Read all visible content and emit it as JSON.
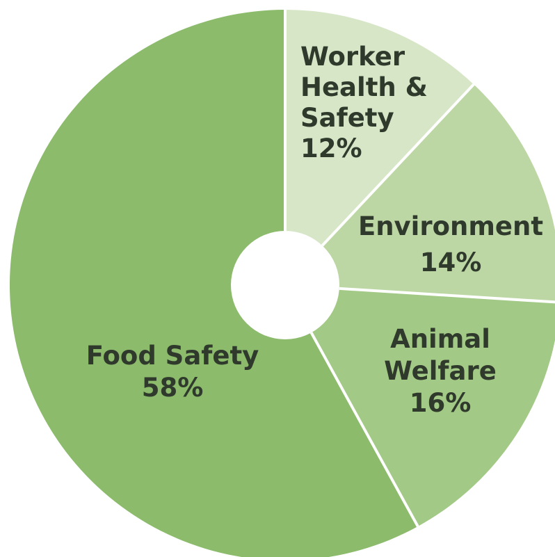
{
  "chart_data": {
    "type": "pie",
    "donut": true,
    "title": "",
    "slices": [
      {
        "label_lines": [
          "Worker",
          "Health &",
          "Safety"
        ],
        "label": "Worker Health & Safety",
        "value": 12,
        "value_text": "12%",
        "color": "#d6e6c6"
      },
      {
        "label_lines": [
          "Environment"
        ],
        "label": "Environment",
        "value": 14,
        "value_text": "14%",
        "color": "#bcd7a4"
      },
      {
        "label_lines": [
          "Animal",
          "Welfare"
        ],
        "label": "Animal Welfare",
        "value": 16,
        "value_text": "16%",
        "color": "#a3c986"
      },
      {
        "label_lines": [
          "Food Safety"
        ],
        "label": "Food Safety",
        "value": 58,
        "value_text": "58%",
        "color": "#8cbb6c"
      }
    ],
    "start_angle_deg": 0,
    "direction": "clockwise",
    "separator_color": "#ffffff",
    "text_color": "#2f3a2c"
  }
}
